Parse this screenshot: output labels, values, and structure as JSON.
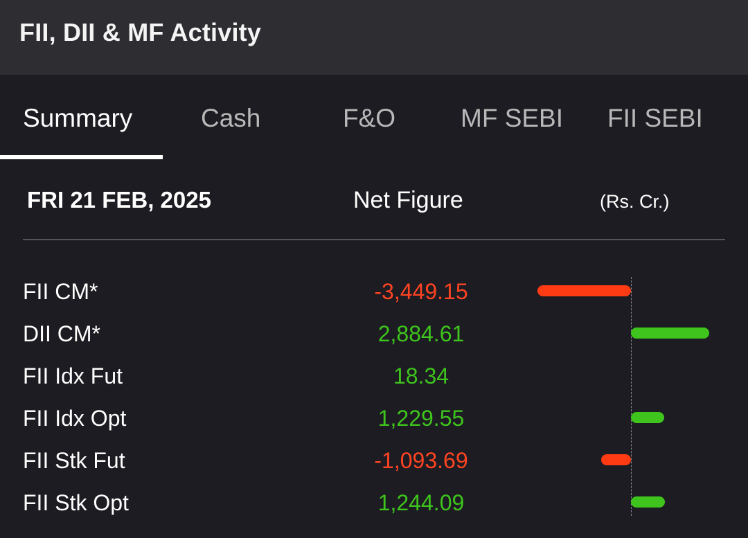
{
  "header": {
    "title": "FII, DII & MF Activity"
  },
  "tabs": [
    {
      "label": "Summary",
      "active": true
    },
    {
      "label": "Cash",
      "active": false
    },
    {
      "label": "F&O",
      "active": false
    },
    {
      "label": "MF SEBI",
      "active": false
    },
    {
      "label": "FII SEBI",
      "active": false
    }
  ],
  "subheader": {
    "date": "FRI 21 FEB, 2025",
    "column_label": "Net Figure",
    "unit": "(Rs. Cr.)"
  },
  "colors": {
    "positive": "#3ec41c",
    "negative": "#ff3b14",
    "positive_text": "#3ec41c",
    "negative_text": "#ff4422"
  },
  "rows": [
    {
      "label": "FII CM*",
      "value_text": "-3,449.15",
      "value": -3449.15
    },
    {
      "label": "DII CM*",
      "value_text": "2,884.61",
      "value": 2884.61
    },
    {
      "label": "FII Idx Fut",
      "value_text": "18.34",
      "value": 18.34
    },
    {
      "label": "FII Idx Opt",
      "value_text": "1,229.55",
      "value": 1229.55
    },
    {
      "label": "FII Stk Fut",
      "value_text": "-1,093.69",
      "value": -1093.69
    },
    {
      "label": "FII Stk Opt",
      "value_text": "1,244.09",
      "value": 1244.09
    }
  ]
}
